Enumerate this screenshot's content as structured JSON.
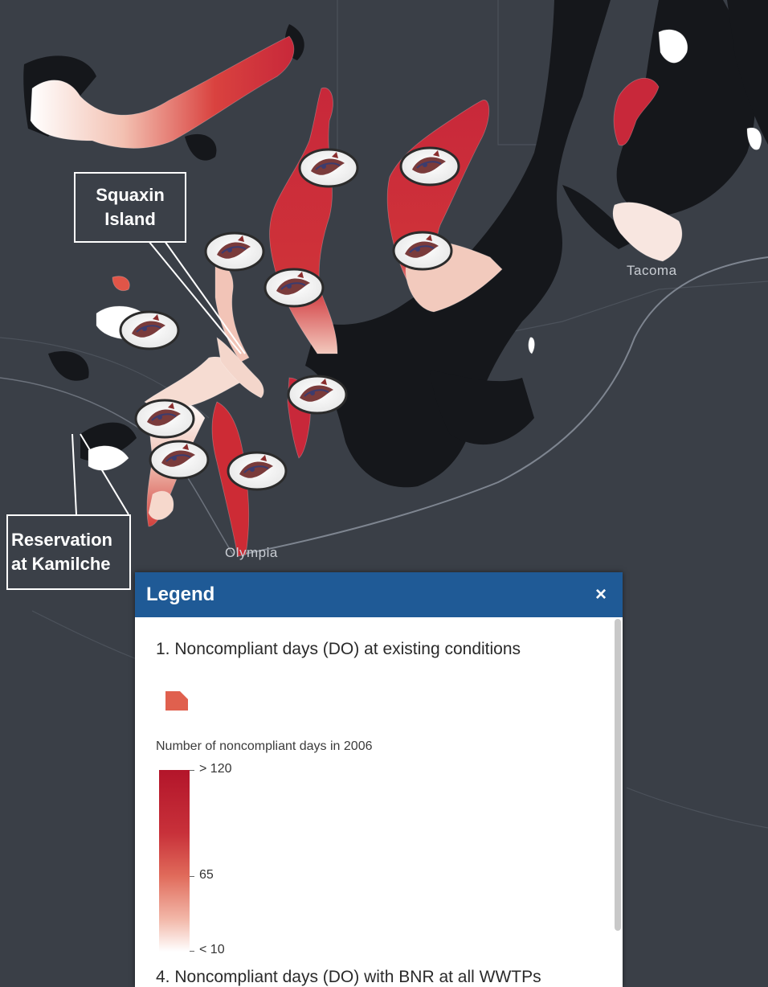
{
  "map": {
    "callouts": {
      "squaxin": [
        "Squaxin",
        "Island"
      ],
      "reservation": [
        "Reservation",
        "at Kamilche"
      ]
    },
    "cities": {
      "tacoma": "Tacoma",
      "olympia": "Olympia"
    },
    "marker_icon": "tribal-logo-icon",
    "colors": {
      "land": "#3a3f47",
      "water": "#15171b",
      "high": "#c8283a",
      "low": "#ffffff"
    }
  },
  "legend": {
    "title": "Legend",
    "close_label": "×",
    "layer1_title": "1. Noncompliant days (DO) at existing conditions",
    "field_label": "Number of noncompliant days in 2006",
    "ramp": {
      "max_label": "> 120",
      "mid_label": "65",
      "min_label": "< 10"
    },
    "layer4_title": "4. Noncompliant days (DO) with BNR at all WWTPs"
  }
}
